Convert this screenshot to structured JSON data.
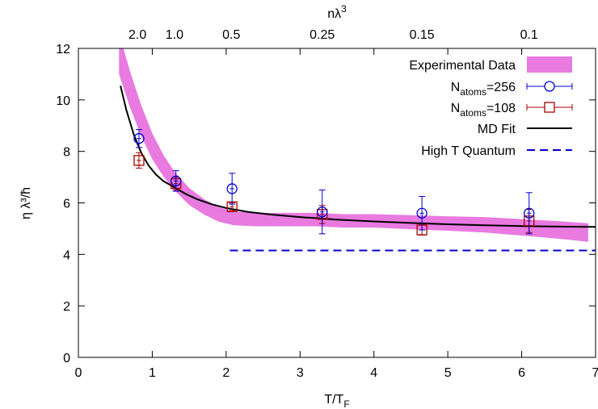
{
  "chart_data": {
    "type": "scatter",
    "xlabel": "T/T",
    "xlabel_sub": "F",
    "ylabel": "η λ³/ħ",
    "top_axis_label": "nλ",
    "top_axis_label_sup": "3",
    "xlim": [
      0,
      7
    ],
    "ylim": [
      0,
      12
    ],
    "x_ticks": [
      0,
      1,
      2,
      3,
      4,
      5,
      6,
      7
    ],
    "y_ticks": [
      0,
      2,
      4,
      6,
      8,
      10,
      12
    ],
    "top_ticks": [
      {
        "label": "2.0",
        "x": 0.8
      },
      {
        "label": "1.0",
        "x": 1.3
      },
      {
        "label": "0.5",
        "x": 2.07
      },
      {
        "label": "0.25",
        "x": 3.3
      },
      {
        "label": "0.15",
        "x": 4.65
      },
      {
        "label": "0.1",
        "x": 6.1
      }
    ],
    "legend_position": "top-right",
    "grid": false,
    "series": [
      {
        "name": "Experimental Data",
        "kind": "band",
        "color": "#e87ae0",
        "x": [
          0.55,
          0.7,
          0.85,
          1.0,
          1.15,
          1.3,
          1.5,
          1.7,
          1.9,
          2.1,
          2.4,
          2.8,
          3.2,
          3.6,
          4.0,
          4.5,
          5.0,
          5.5,
          6.0,
          6.5,
          6.9
        ],
        "center": [
          11.8,
          10.4,
          9.2,
          8.2,
          7.45,
          6.85,
          6.25,
          5.85,
          5.55,
          5.4,
          5.35,
          5.35,
          5.35,
          5.3,
          5.3,
          5.25,
          5.2,
          5.15,
          5.05,
          4.95,
          4.85
        ],
        "halfwidth": [
          0.8,
          0.7,
          0.6,
          0.5,
          0.42,
          0.36,
          0.33,
          0.3,
          0.28,
          0.27,
          0.26,
          0.26,
          0.26,
          0.26,
          0.26,
          0.27,
          0.28,
          0.3,
          0.32,
          0.34,
          0.36
        ]
      },
      {
        "name": "N",
        "name_sub": "atoms",
        "name_suffix": "=256",
        "kind": "points",
        "marker": "circle",
        "color": "#0000cc",
        "points": [
          {
            "x": 0.82,
            "y": 8.5,
            "err": 0.35,
            "xerr": 0.03
          },
          {
            "x": 1.32,
            "y": 6.85,
            "err": 0.4,
            "xerr": 0.03
          },
          {
            "x": 2.08,
            "y": 6.55,
            "err": 0.6,
            "xerr": 0.03
          },
          {
            "x": 3.3,
            "y": 5.65,
            "err": 0.85,
            "xerr": 0.03
          },
          {
            "x": 4.65,
            "y": 5.6,
            "err": 0.65,
            "xerr": 0.03
          },
          {
            "x": 6.1,
            "y": 5.6,
            "err": 0.8,
            "xerr": 0.03
          }
        ]
      },
      {
        "name": "N",
        "name_sub": "atoms",
        "name_suffix": "=108",
        "kind": "points",
        "marker": "square",
        "color": "#aa0000",
        "points": [
          {
            "x": 0.82,
            "y": 7.65,
            "err": 0.3,
            "xerr": 0.03
          },
          {
            "x": 1.32,
            "y": 6.75,
            "err": 0.25,
            "xerr": 0.03
          },
          {
            "x": 2.08,
            "y": 5.85,
            "err": 0.15,
            "xerr": 0.03
          },
          {
            "x": 3.3,
            "y": 5.55,
            "err": 0.35,
            "xerr": 0.03
          },
          {
            "x": 4.65,
            "y": 4.95,
            "err": 0.2,
            "xerr": 0.03
          },
          {
            "x": 6.1,
            "y": 5.3,
            "err": 0.45,
            "xerr": 0.03
          }
        ]
      },
      {
        "name": "MD Fit",
        "kind": "line",
        "color": "#000000",
        "x": [
          0.57,
          0.65,
          0.75,
          0.85,
          0.95,
          1.05,
          1.15,
          1.3,
          1.45,
          1.6,
          1.8,
          2.0,
          2.3,
          2.6,
          3.0,
          3.5,
          4.0,
          4.5,
          5.0,
          5.5,
          6.0,
          6.5,
          7.0
        ],
        "y": [
          10.55,
          9.6,
          8.65,
          7.95,
          7.45,
          7.1,
          6.85,
          6.6,
          6.35,
          6.15,
          5.95,
          5.8,
          5.65,
          5.55,
          5.45,
          5.35,
          5.28,
          5.22,
          5.17,
          5.13,
          5.1,
          5.08,
          5.07
        ]
      },
      {
        "name": "High T Quantum",
        "kind": "dashed",
        "color": "#0000cc",
        "x": [
          2.05,
          7.0
        ],
        "y": [
          4.15,
          4.15
        ]
      }
    ]
  }
}
